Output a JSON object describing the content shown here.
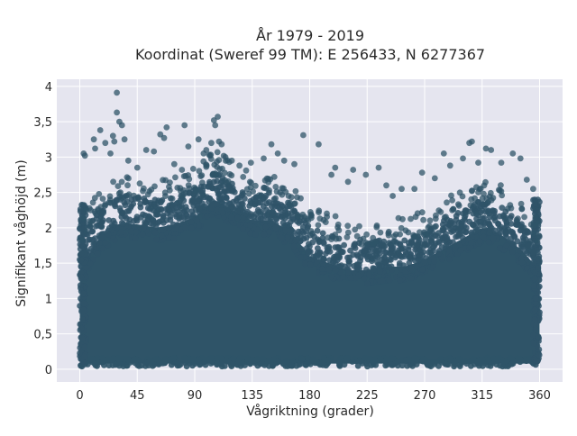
{
  "chart_data": {
    "type": "scatter",
    "title": "År 1979 - 2019",
    "subtitle": "Koordinat (Sweref 99 TM): E 256433, N 6277367",
    "xlabel": "Vågriktning (grader)",
    "ylabel": "Signifikant våghöjd (m)",
    "xlim": [
      -18,
      378
    ],
    "ylim": [
      -0.18,
      4.1
    ],
    "x_ticks": [
      0,
      45,
      90,
      135,
      180,
      225,
      270,
      315,
      360
    ],
    "x_tick_labels": [
      "0",
      "45",
      "90",
      "135",
      "180",
      "225",
      "270",
      "315",
      "360"
    ],
    "y_ticks": [
      0,
      0.5,
      1,
      1.5,
      2,
      2.5,
      3,
      3.5,
      4
    ],
    "y_tick_labels": [
      "0",
      "0,5",
      "1",
      "1,5",
      "2",
      "2,5",
      "3",
      "3,5",
      "4"
    ],
    "grid": true,
    "legend": "none",
    "marker_color": "#2f5468",
    "background_color": "#e5e5ef",
    "envelope": {
      "description_x_deg": [
        0,
        15,
        30,
        45,
        60,
        75,
        90,
        105,
        120,
        135,
        150,
        165,
        180,
        195,
        210,
        225,
        240,
        255,
        270,
        285,
        300,
        315,
        330,
        345,
        360
      ],
      "dense_upper_m": [
        1.75,
        2.2,
        2.4,
        2.4,
        2.35,
        2.4,
        2.5,
        2.75,
        2.6,
        2.45,
        2.45,
        2.3,
        1.95,
        1.85,
        1.75,
        1.75,
        1.8,
        1.8,
        1.9,
        2.05,
        2.2,
        2.35,
        2.25,
        2.05,
        1.75
      ]
    },
    "points": [
      {
        "x": 3,
        "y": 3.05
      },
      {
        "x": 4,
        "y": 3.02
      },
      {
        "x": 11,
        "y": 3.25
      },
      {
        "x": 12,
        "y": 3.12
      },
      {
        "x": 16,
        "y": 3.38
      },
      {
        "x": 20,
        "y": 3.2
      },
      {
        "x": 24,
        "y": 3.05
      },
      {
        "x": 26,
        "y": 3.3
      },
      {
        "x": 27,
        "y": 3.22
      },
      {
        "x": 29,
        "y": 3.63
      },
      {
        "x": 29,
        "y": 3.91
      },
      {
        "x": 31,
        "y": 3.5
      },
      {
        "x": 33,
        "y": 3.45
      },
      {
        "x": 35,
        "y": 3.25
      },
      {
        "x": 38,
        "y": 2.95
      },
      {
        "x": 45,
        "y": 2.85
      },
      {
        "x": 52,
        "y": 3.1
      },
      {
        "x": 58,
        "y": 3.08
      },
      {
        "x": 63,
        "y": 3.32
      },
      {
        "x": 66,
        "y": 3.27
      },
      {
        "x": 68,
        "y": 3.42
      },
      {
        "x": 74,
        "y": 2.9
      },
      {
        "x": 80,
        "y": 2.82
      },
      {
        "x": 82,
        "y": 3.45
      },
      {
        "x": 85,
        "y": 3.15
      },
      {
        "x": 93,
        "y": 3.25
      },
      {
        "x": 97,
        "y": 3.05
      },
      {
        "x": 99,
        "y": 3.1
      },
      {
        "x": 102,
        "y": 3.02
      },
      {
        "x": 103,
        "y": 3.2
      },
      {
        "x": 105,
        "y": 3.52
      },
      {
        "x": 106,
        "y": 3.45
      },
      {
        "x": 108,
        "y": 3.57
      },
      {
        "x": 109,
        "y": 3.22
      },
      {
        "x": 111,
        "y": 3.18
      },
      {
        "x": 114,
        "y": 3.0
      },
      {
        "x": 119,
        "y": 2.95
      },
      {
        "x": 125,
        "y": 2.88
      },
      {
        "x": 134,
        "y": 2.92
      },
      {
        "x": 144,
        "y": 2.98
      },
      {
        "x": 150,
        "y": 3.18
      },
      {
        "x": 155,
        "y": 3.05
      },
      {
        "x": 160,
        "y": 2.95
      },
      {
        "x": 168,
        "y": 2.9
      },
      {
        "x": 175,
        "y": 3.31
      },
      {
        "x": 187,
        "y": 3.18
      },
      {
        "x": 197,
        "y": 2.75
      },
      {
        "x": 200,
        "y": 2.85
      },
      {
        "x": 210,
        "y": 2.65
      },
      {
        "x": 214,
        "y": 2.82
      },
      {
        "x": 224,
        "y": 2.75
      },
      {
        "x": 234,
        "y": 2.85
      },
      {
        "x": 240,
        "y": 2.6
      },
      {
        "x": 245,
        "y": 2.45
      },
      {
        "x": 252,
        "y": 2.55
      },
      {
        "x": 262,
        "y": 2.55
      },
      {
        "x": 268,
        "y": 2.78
      },
      {
        "x": 278,
        "y": 2.7
      },
      {
        "x": 285,
        "y": 3.05
      },
      {
        "x": 290,
        "y": 2.88
      },
      {
        "x": 300,
        "y": 2.98
      },
      {
        "x": 305,
        "y": 3.2
      },
      {
        "x": 307,
        "y": 3.22
      },
      {
        "x": 312,
        "y": 2.92
      },
      {
        "x": 318,
        "y": 3.12
      },
      {
        "x": 322,
        "y": 3.1
      },
      {
        "x": 330,
        "y": 2.92
      },
      {
        "x": 339,
        "y": 3.05
      },
      {
        "x": 345,
        "y": 2.98
      },
      {
        "x": 350,
        "y": 2.68
      },
      {
        "x": 355,
        "y": 2.55
      }
    ]
  }
}
